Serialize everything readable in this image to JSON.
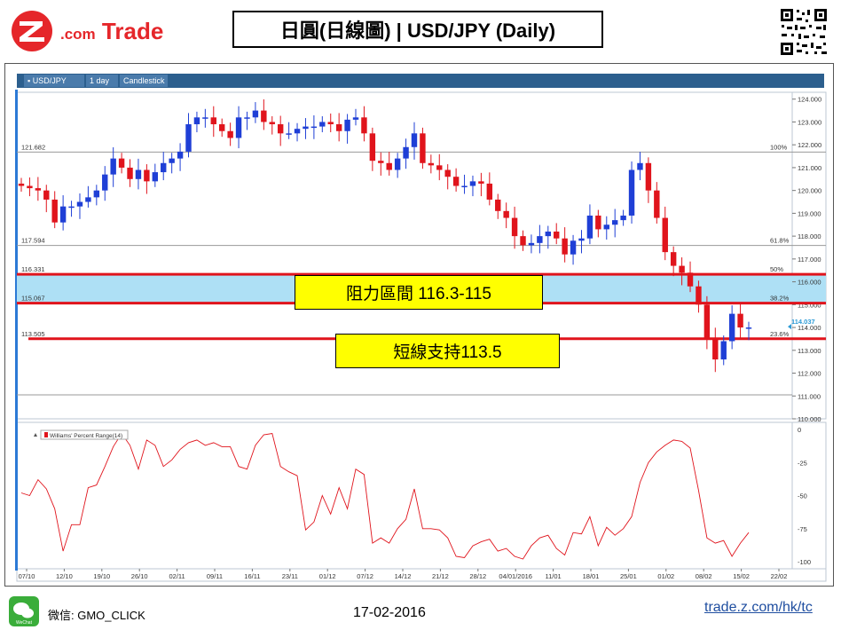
{
  "header": {
    "logo_text": "Trade",
    "logo_prefix": ".com",
    "title": "日圓(日線圖) | USD/JPY  (Daily)"
  },
  "toolbar": {
    "pair": "USD/JPY",
    "interval": "1 day",
    "chart_type": "Candlestick"
  },
  "annotations": {
    "resistance": "阻力區間 116.3-115",
    "support": "短線支持113.5"
  },
  "price_labels": {
    "current": "114.037",
    "level_a": "121.682",
    "level_b": "117.594",
    "level_c": "116.331",
    "level_d": "115.067",
    "level_e": "113.505"
  },
  "fib_labels": [
    "100%",
    "61.8%",
    "50%",
    "38.2%",
    "23.6%"
  ],
  "indicator": {
    "name": "Williams' Percent Range(14)"
  },
  "footer": {
    "wechat": "微信: GMO_CLICK",
    "wechat_icon_label": "WeChat",
    "date": "17-02-2016",
    "link": "trade.z.com/hk/tc"
  },
  "colors": {
    "up": "#1f3fd6",
    "down": "#e0141c",
    "brand": "#e5262a",
    "resistance_zone": "#aee0f5",
    "annotation_bg": "#ffff00"
  },
  "chart_data": [
    {
      "type": "candlestick",
      "x_ticks": [
        "07/10",
        "12/10",
        "19/10",
        "26/10",
        "02/11",
        "09/11",
        "16/11",
        "23/11",
        "01/12",
        "07/12",
        "14/12",
        "21/12",
        "28/12",
        "04/01/2016",
        "11/01",
        "18/01",
        "25/01",
        "01/02",
        "08/02",
        "15/02",
        "22/02"
      ],
      "y_ticks": [
        124,
        123,
        122,
        121,
        120,
        119,
        118,
        117,
        116,
        115,
        114,
        113,
        112,
        111,
        110
      ],
      "ylim": [
        110,
        124.3
      ],
      "closes": [
        120.2,
        120.1,
        120.0,
        119.6,
        118.6,
        119.3,
        119.3,
        119.5,
        119.7,
        120.0,
        120.7,
        121.4,
        121.0,
        120.5,
        120.9,
        120.4,
        120.8,
        121.2,
        121.4,
        121.7,
        122.9,
        123.2,
        123.2,
        122.9,
        122.6,
        122.3,
        123.2,
        123.2,
        123.5,
        123.0,
        122.9,
        122.5,
        122.5,
        122.7,
        122.8,
        122.8,
        123.0,
        122.9,
        122.6,
        123.1,
        123.2,
        122.5,
        121.3,
        121.2,
        120.9,
        121.4,
        121.9,
        122.5,
        121.2,
        121.1,
        120.9,
        120.6,
        120.2,
        120.2,
        120.4,
        120.3,
        119.6,
        119.1,
        118.8,
        118.0,
        117.6,
        117.7,
        118.0,
        118.2,
        117.9,
        117.2,
        117.8,
        117.9,
        118.9,
        118.3,
        118.5,
        118.7,
        118.9,
        120.9,
        121.2,
        120.0,
        118.8,
        117.3,
        116.7,
        116.4,
        115.8,
        115.0,
        113.5,
        112.6,
        113.4,
        114.6,
        114.0,
        114.0
      ],
      "fib_levels": [
        121.682,
        117.594,
        116.331,
        115.067,
        113.505
      ],
      "support": 113.5,
      "resistance_zone": [
        115.067,
        116.331
      ],
      "last_price": 114.037
    },
    {
      "type": "line",
      "name": "Williams' Percent Range(14)",
      "y_ticks": [
        0,
        -25,
        -50,
        -75,
        -100
      ],
      "ylim": [
        -100,
        0
      ],
      "values": [
        -48,
        -50,
        -38,
        -45,
        -60,
        -92,
        -72,
        -72,
        -44,
        -42,
        -28,
        -13,
        -3,
        -12,
        -30,
        -8,
        -12,
        -28,
        -23,
        -15,
        -10,
        -8,
        -12,
        -10,
        -13,
        -13,
        -28,
        -30,
        -12,
        -4,
        -3,
        -28,
        -32,
        -35,
        -76,
        -70,
        -50,
        -64,
        -44,
        -60,
        -30,
        -34,
        -86,
        -82,
        -86,
        -75,
        -68,
        -45,
        -75,
        -75,
        -76,
        -82,
        -96,
        -97,
        -88,
        -85,
        -83,
        -92,
        -90,
        -96,
        -98,
        -88,
        -82,
        -80,
        -90,
        -95,
        -78,
        -79,
        -66,
        -88,
        -74,
        -80,
        -75,
        -66,
        -40,
        -25,
        -17,
        -12,
        -8,
        -9,
        -14,
        -46,
        -82,
        -86,
        -84,
        -96,
        -86,
        -78
      ]
    }
  ]
}
